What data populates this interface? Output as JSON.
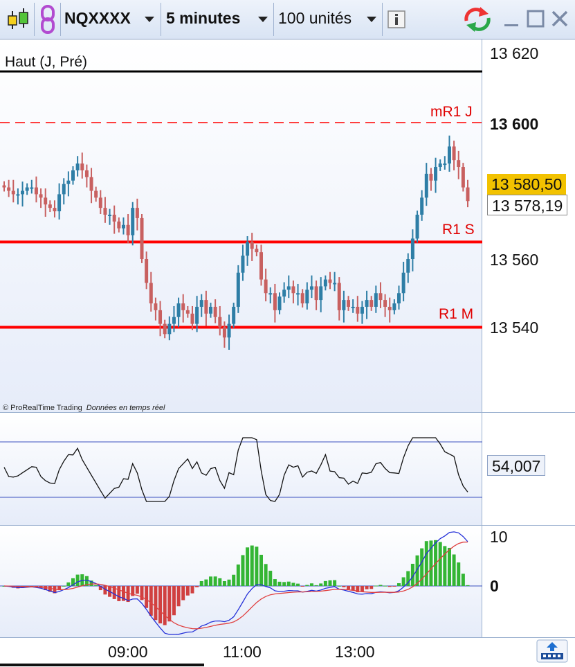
{
  "toolbar": {
    "symbol": "NQXXXX",
    "timeframe": "5 minutes",
    "units": "100 unités",
    "info_icon": "info-icon"
  },
  "price_panel": {
    "ref_label": "Haut (J, Pré)",
    "watermark_brand": "© ProRealTime Trading",
    "watermark_status": "Données en temps réel",
    "levels": [
      {
        "label": "mR1 J",
        "price": 13600,
        "style": "dashed"
      },
      {
        "label": "R1 S",
        "price": 13565,
        "style": "solid"
      },
      {
        "label": "R1 M",
        "price": 13540,
        "style": "solid"
      }
    ],
    "ref_level_price": 13615,
    "y_ticks": [
      "13 620",
      "13 600",
      "13 560",
      "13 540"
    ],
    "y_tick_bold": "13 600",
    "last_price": "13 580,50",
    "second_price": "13 578,19"
  },
  "oscillator_panel": {
    "value": "54,007"
  },
  "macd_panel": {
    "y_ticks": [
      "10",
      "0"
    ]
  },
  "x_axis": {
    "ticks": [
      "09:00",
      "11:00",
      "13:00"
    ]
  },
  "colors": {
    "up": "#2e7ea6",
    "down": "#c86060",
    "level": "#ff0000",
    "hist_up": "#34b534",
    "hist_down": "#d04040",
    "last_price_bg": "#f2c200"
  },
  "chart_data": {
    "type": "candlestick",
    "series": [
      {
        "name": "price",
        "values": [
          13581,
          13580,
          13579,
          13579,
          13580,
          13581,
          13581,
          13579,
          13578,
          13576,
          13575,
          13574,
          13579,
          13582,
          13583,
          13586,
          13588,
          13586,
          13584,
          13580,
          13578,
          13575,
          13573,
          13573,
          13571,
          13569,
          13570,
          13567,
          13575,
          13572,
          13560,
          13553,
          13547,
          13545,
          13541,
          13538,
          13541,
          13543,
          13547,
          13545,
          13544,
          13541,
          13546,
          13548,
          13544,
          13546,
          13543,
          13540,
          13537,
          13541,
          13546,
          13556,
          13561,
          13565,
          13563,
          13562,
          13554,
          13550,
          13550,
          13545,
          13549,
          13551,
          13552,
          13550,
          13550,
          13547,
          13551,
          13552,
          13548,
          13552,
          13554,
          13553,
          13553,
          13545,
          13548,
          13546,
          13546,
          13544,
          13546,
          13548,
          13546,
          13550,
          13548,
          13546,
          13545,
          13547,
          13550,
          13556,
          13560,
          13566,
          13573,
          13578,
          13585,
          13583,
          13587,
          13588,
          13588,
          13593,
          13589,
          13587,
          13581,
          13577
        ]
      }
    ]
  }
}
